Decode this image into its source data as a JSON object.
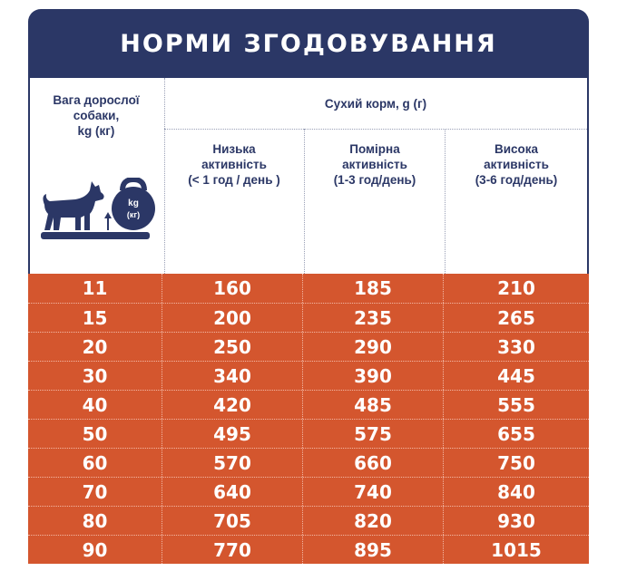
{
  "title": "НОРМИ ЗГОДОВУВАННЯ",
  "header": {
    "weight_lines": [
      "Вага дорослої",
      "собаки,",
      "kg (кг)"
    ],
    "dry_food": "Сухий корм, g (г)",
    "kettlebell_lines": [
      "kg",
      "(кг)"
    ],
    "activities": [
      {
        "lines": [
          "Низька",
          "активність",
          "(< 1 год / день )"
        ]
      },
      {
        "lines": [
          "Помірна",
          "активність",
          "(1-3 год/день)"
        ]
      },
      {
        "lines": [
          "Висока",
          "активність",
          "(3-6 год/день)"
        ]
      }
    ]
  },
  "rows": [
    [
      "11",
      "160",
      "185",
      "210"
    ],
    [
      "15",
      "200",
      "235",
      "265"
    ],
    [
      "20",
      "250",
      "290",
      "330"
    ],
    [
      "30",
      "340",
      "390",
      "445"
    ],
    [
      "40",
      "420",
      "485",
      "555"
    ],
    [
      "50",
      "495",
      "575",
      "655"
    ],
    [
      "60",
      "570",
      "660",
      "750"
    ],
    [
      "70",
      "640",
      "740",
      "840"
    ],
    [
      "80",
      "705",
      "820",
      "930"
    ],
    [
      "90",
      "770",
      "895",
      "1015"
    ]
  ],
  "colors": {
    "navy": "#2b3766",
    "orange": "#d4562e",
    "white": "#ffffff"
  },
  "icons": [
    "dog-icon",
    "kettlebell-icon",
    "arrow-up-icon"
  ]
}
